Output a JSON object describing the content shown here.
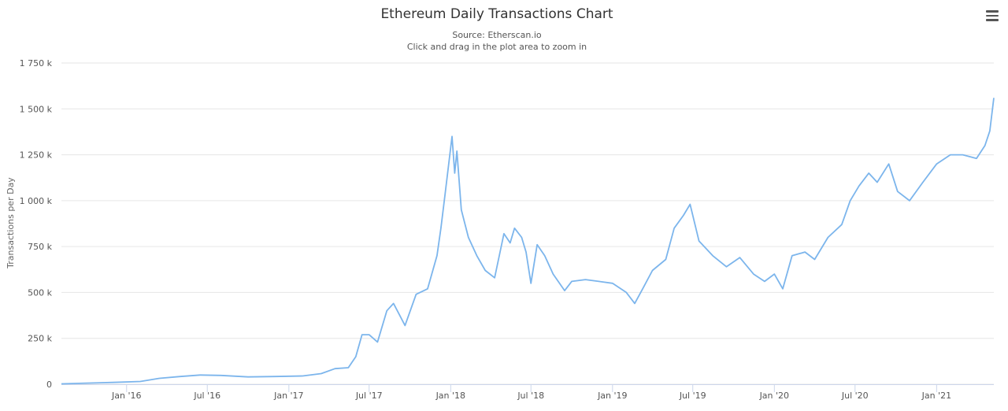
{
  "header": {
    "title": "Ethereum Daily Transactions Chart",
    "subtitle_source": "Source: Etherscan.io",
    "subtitle_hint": "Click and drag in the plot area to zoom in"
  },
  "menu": {
    "icon": "hamburger-menu-icon"
  },
  "colors": {
    "series": "#7cb5ec",
    "grid": "#e6e6e6",
    "axis": "#ccd6eb"
  },
  "chart_data": {
    "type": "line",
    "title": "Ethereum Daily Transactions Chart",
    "subtitle": [
      "Source: Etherscan.io",
      "Click and drag in the plot area to zoom in"
    ],
    "xlabel": "",
    "ylabel": "Transactions per Day",
    "ylim": [
      0,
      1750000
    ],
    "y_ticks": [
      0,
      250000,
      500000,
      750000,
      1000000,
      1250000,
      1500000,
      1750000
    ],
    "y_tick_labels": [
      "0",
      "250 k",
      "500 k",
      "750 k",
      "1 000 k",
      "1 250 k",
      "1 500 k",
      "1 750 k"
    ],
    "xlim": [
      "2015-08-07",
      "2021-05-10"
    ],
    "x_ticks": [
      "2016-01-01",
      "2016-07-01",
      "2017-01-01",
      "2017-07-01",
      "2018-01-01",
      "2018-07-01",
      "2019-01-01",
      "2019-07-01",
      "2020-01-01",
      "2020-07-01",
      "2021-01-01"
    ],
    "x_tick_labels": [
      "Jan '16",
      "Jul '16",
      "Jan '17",
      "Jul '17",
      "Jan '18",
      "Jul '18",
      "Jan '19",
      "Jul '19",
      "Jan '20",
      "Jul '20",
      "Jan '21"
    ],
    "grid": true,
    "legend": "none",
    "series": [
      {
        "color": "#7cb5ec",
        "points": [
          [
            "2015-08-07",
            2000
          ],
          [
            "2015-10-01",
            6000
          ],
          [
            "2015-12-01",
            10000
          ],
          [
            "2016-02-01",
            15000
          ],
          [
            "2016-03-15",
            32000
          ],
          [
            "2016-05-01",
            42000
          ],
          [
            "2016-06-15",
            50000
          ],
          [
            "2016-08-01",
            48000
          ],
          [
            "2016-10-01",
            40000
          ],
          [
            "2016-12-01",
            42000
          ],
          [
            "2017-02-01",
            45000
          ],
          [
            "2017-03-15",
            58000
          ],
          [
            "2017-04-15",
            85000
          ],
          [
            "2017-05-15",
            90000
          ],
          [
            "2017-06-01",
            150000
          ],
          [
            "2017-06-15",
            270000
          ],
          [
            "2017-07-01",
            270000
          ],
          [
            "2017-07-20",
            230000
          ],
          [
            "2017-08-10",
            400000
          ],
          [
            "2017-08-25",
            440000
          ],
          [
            "2017-09-20",
            320000
          ],
          [
            "2017-10-15",
            490000
          ],
          [
            "2017-11-10",
            520000
          ],
          [
            "2017-12-01",
            700000
          ],
          [
            "2017-12-10",
            850000
          ],
          [
            "2017-12-20",
            1050000
          ],
          [
            "2018-01-04",
            1350000
          ],
          [
            "2018-01-10",
            1150000
          ],
          [
            "2018-01-15",
            1270000
          ],
          [
            "2018-01-25",
            950000
          ],
          [
            "2018-02-10",
            800000
          ],
          [
            "2018-03-01",
            700000
          ],
          [
            "2018-03-20",
            620000
          ],
          [
            "2018-04-10",
            580000
          ],
          [
            "2018-05-01",
            820000
          ],
          [
            "2018-05-15",
            770000
          ],
          [
            "2018-05-25",
            850000
          ],
          [
            "2018-06-10",
            800000
          ],
          [
            "2018-06-20",
            720000
          ],
          [
            "2018-07-01",
            550000
          ],
          [
            "2018-07-15",
            760000
          ],
          [
            "2018-08-01",
            700000
          ],
          [
            "2018-08-20",
            600000
          ],
          [
            "2018-09-15",
            510000
          ],
          [
            "2018-10-01",
            560000
          ],
          [
            "2018-11-01",
            570000
          ],
          [
            "2018-12-01",
            560000
          ],
          [
            "2019-01-01",
            550000
          ],
          [
            "2019-02-01",
            500000
          ],
          [
            "2019-02-20",
            440000
          ],
          [
            "2019-03-10",
            520000
          ],
          [
            "2019-04-01",
            620000
          ],
          [
            "2019-05-01",
            680000
          ],
          [
            "2019-05-20",
            850000
          ],
          [
            "2019-06-10",
            920000
          ],
          [
            "2019-06-25",
            980000
          ],
          [
            "2019-07-15",
            780000
          ],
          [
            "2019-08-15",
            700000
          ],
          [
            "2019-09-15",
            640000
          ],
          [
            "2019-10-15",
            690000
          ],
          [
            "2019-11-15",
            600000
          ],
          [
            "2019-12-10",
            560000
          ],
          [
            "2020-01-01",
            600000
          ],
          [
            "2020-01-20",
            520000
          ],
          [
            "2020-02-10",
            700000
          ],
          [
            "2020-03-10",
            720000
          ],
          [
            "2020-04-01",
            680000
          ],
          [
            "2020-05-01",
            800000
          ],
          [
            "2020-06-01",
            870000
          ],
          [
            "2020-06-20",
            1000000
          ],
          [
            "2020-07-10",
            1080000
          ],
          [
            "2020-08-01",
            1150000
          ],
          [
            "2020-08-20",
            1100000
          ],
          [
            "2020-09-15",
            1200000
          ],
          [
            "2020-10-05",
            1050000
          ],
          [
            "2020-11-01",
            1000000
          ],
          [
            "2020-12-01",
            1100000
          ],
          [
            "2021-01-01",
            1200000
          ],
          [
            "2021-02-01",
            1250000
          ],
          [
            "2021-03-01",
            1250000
          ],
          [
            "2021-04-01",
            1230000
          ],
          [
            "2021-04-20",
            1300000
          ],
          [
            "2021-05-01",
            1380000
          ],
          [
            "2021-05-10",
            1560000
          ]
        ]
      }
    ]
  }
}
